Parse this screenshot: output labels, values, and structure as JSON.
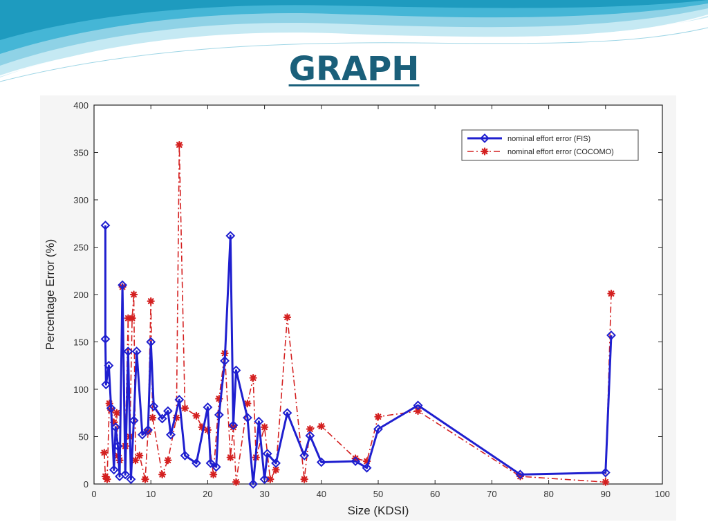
{
  "slide": {
    "title": "GRAPH"
  },
  "colors": {
    "title": "#1a5f7a",
    "fis": "#1f1fcf",
    "cocomo": "#d42020",
    "wave_dark": "#1e9bbf",
    "wave_light": "#bfe6f1"
  },
  "chart_data": {
    "type": "line",
    "title": "",
    "xlabel": "Size (KDSI)",
    "ylabel": "Percentage Error (%)",
    "xlim": [
      0,
      100
    ],
    "ylim": [
      0,
      400
    ],
    "xticks": [
      0,
      10,
      20,
      30,
      40,
      50,
      60,
      70,
      80,
      90,
      100
    ],
    "yticks": [
      0,
      50,
      100,
      150,
      200,
      250,
      300,
      350,
      400
    ],
    "grid": false,
    "legend_position": "top-right",
    "series": [
      {
        "name": "nominal effort error (FIS)",
        "color": "#1f1fcf",
        "line_style": "solid",
        "marker": "diamond",
        "x": [
          2,
          2,
          2.1,
          2.6,
          3,
          3.5,
          3.8,
          4.2,
          4.5,
          5,
          5.5,
          6,
          6.5,
          7,
          7.5,
          8.5,
          9.5,
          10,
          10.5,
          12,
          13,
          13.5,
          15,
          16,
          18,
          20,
          20.5,
          21.5,
          22,
          23,
          24,
          24.5,
          25,
          27,
          28,
          29,
          30,
          30.5,
          32,
          34,
          37,
          38,
          40,
          46,
          48,
          50,
          57,
          75,
          90,
          91
        ],
        "y": [
          273,
          153,
          105,
          125,
          80,
          15,
          60,
          40,
          8,
          210,
          10,
          140,
          5,
          67,
          140,
          52,
          57,
          150,
          82,
          69,
          77,
          52,
          89,
          30,
          22,
          81,
          22,
          18,
          73,
          130,
          262,
          62,
          120,
          70,
          0,
          66,
          5,
          32,
          22,
          75,
          30,
          51,
          23,
          24,
          17,
          58,
          83,
          10,
          12,
          157
        ]
      },
      {
        "name": "nominal effort error (COCOMO)",
        "color": "#d42020",
        "line_style": "dash-dot",
        "marker": "asterisk",
        "x": [
          1.8,
          2,
          2.3,
          2.7,
          3,
          3.5,
          4,
          4.2,
          4.5,
          5,
          5.5,
          6,
          6.3,
          6.7,
          7,
          7.3,
          8,
          9,
          9.5,
          10,
          10.3,
          12,
          13,
          14.5,
          15,
          16,
          18,
          19,
          20,
          21,
          22,
          23,
          24,
          24.5,
          25,
          27,
          28,
          28.5,
          30,
          31,
          32,
          34,
          37,
          38,
          40,
          46,
          48,
          50,
          57,
          75,
          90,
          91
        ],
        "y": [
          33,
          8,
          5,
          85,
          78,
          65,
          75,
          30,
          25,
          208,
          40,
          175,
          50,
          175,
          200,
          25,
          30,
          5,
          55,
          193,
          70,
          10,
          25,
          70,
          358,
          80,
          72,
          60,
          57,
          10,
          90,
          138,
          28,
          60,
          2,
          85,
          112,
          28,
          60,
          5,
          15,
          176,
          5,
          58,
          61,
          27,
          24,
          71,
          77,
          8,
          2,
          201
        ]
      }
    ]
  }
}
